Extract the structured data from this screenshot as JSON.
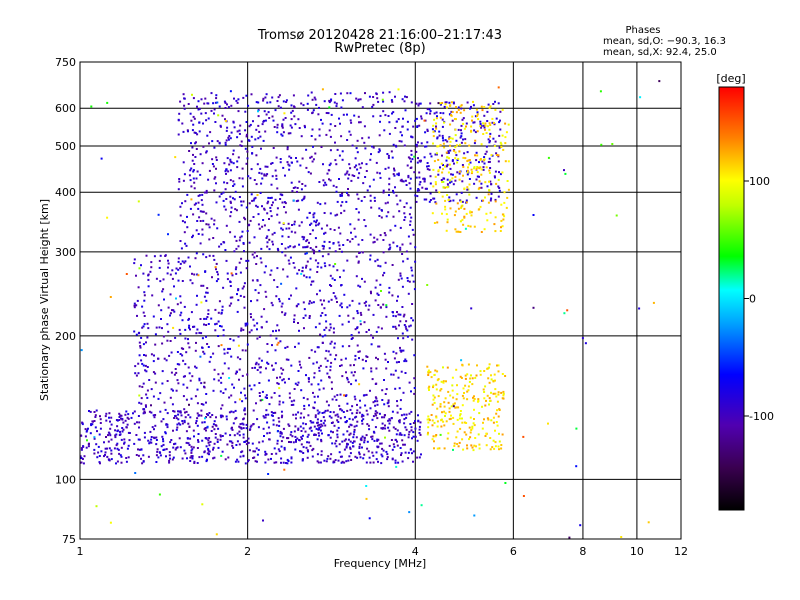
{
  "chart_data": {
    "type": "scatter",
    "title": "Tromsø 20120428 21:16:00–21:17:43",
    "subtitle": "RwPretec (8p)",
    "xlabel": "Frequency [MHz]",
    "ylabel": "Stationary phase Virtual Height [km]",
    "x_scale": "log",
    "y_scale": "log",
    "xlim": [
      1,
      12
    ],
    "ylim": [
      75,
      750
    ],
    "x_ticks": [
      1,
      2,
      4,
      6,
      8,
      10,
      12
    ],
    "y_ticks": [
      75,
      100,
      200,
      300,
      400,
      500,
      600,
      750
    ],
    "grid": true,
    "phases_header": "Phases",
    "phases_stats": [
      "mean, sd,O: −90.3, 16.3",
      "mean, sd,X:  92.4, 25.0"
    ],
    "colorbar": {
      "label": "[deg]",
      "min": -180,
      "max": 180,
      "ticks": [
        100,
        0,
        -100
      ],
      "colormap": "rainbow (black → purple → blue → cyan → green → yellow → red)"
    },
    "traces": [
      {
        "name": "",
        "phase": -95,
        "x_range": [
          1.0,
          4.1
        ],
        "y_range": [
          108,
          140
        ],
        "density": "high"
      },
      {
        "name": "",
        "phase": -95,
        "x_range": [
          1.25,
          4.0
        ],
        "y_range": [
          140,
          300
        ],
        "density": "high"
      },
      {
        "name": "",
        "phase": -95,
        "x_range": [
          1.5,
          4.0
        ],
        "y_range": [
          300,
          650
        ],
        "density": "high"
      },
      {
        "name": "",
        "phase": -90,
        "x_range": [
          4.0,
          5.7
        ],
        "y_range": [
          380,
          620
        ],
        "density": "medium"
      },
      {
        "name": "",
        "phase": 110,
        "x_range": [
          4.2,
          5.8
        ],
        "y_range": [
          115,
          175
        ],
        "density": "medium"
      },
      {
        "name": "",
        "phase": 110,
        "x_range": [
          4.3,
          5.9
        ],
        "y_range": [
          330,
          620
        ],
        "density": "medium"
      },
      {
        "name": "",
        "phase": 10,
        "x_range": [
          1.0,
          11.0
        ],
        "y_range": [
          75,
          700
        ],
        "density": "sparse"
      }
    ]
  },
  "colors": {
    "o_mode": "#1a2ee6",
    "x_mode": "#f0e000",
    "grid": "#000000",
    "background": "#ffffff"
  }
}
